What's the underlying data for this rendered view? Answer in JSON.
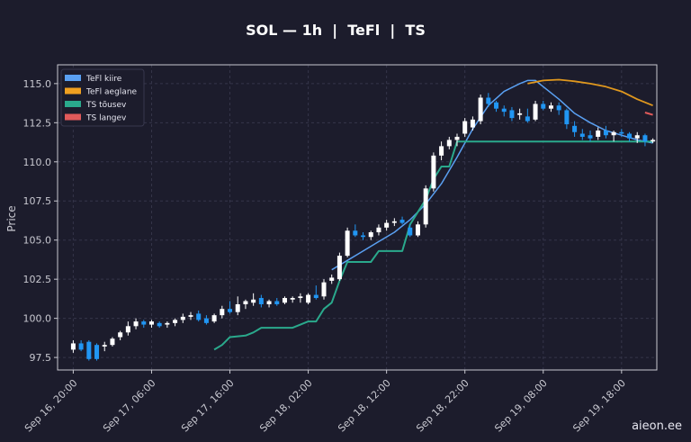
{
  "chart_data": {
    "type": "candlestick",
    "title": "SOL — 1h  |  TeFl  |  TS",
    "ylabel": "Price",
    "ylim": [
      96.7,
      116.2
    ],
    "xlim": [
      -4,
      149
    ],
    "yticks": [
      "97.5",
      "100.0",
      "102.5",
      "105.0",
      "107.5",
      "110.0",
      "112.5",
      "115.0"
    ],
    "yticks_values": [
      97.5,
      100.0,
      102.5,
      105.0,
      107.5,
      110.0,
      112.5,
      115.0
    ],
    "xticks": [
      "Sep 16, 20:00",
      "Sep 17, 06:00",
      "Sep 17, 16:00",
      "Sep 18, 02:00",
      "Sep 18, 12:00",
      "Sep 18, 22:00",
      "Sep 19, 08:00",
      "Sep 19, 18:00"
    ],
    "xticks_index": [
      0,
      20,
      40,
      60,
      80,
      100,
      120,
      140
    ],
    "grid": true,
    "legend_position": "top-left",
    "legend": [
      {
        "label": "TeFl kiire",
        "color": "#5aa0f2"
      },
      {
        "label": "TeFl aeglane",
        "color": "#f0a020"
      },
      {
        "label": "TS tõusev",
        "color": "#2aa98c"
      },
      {
        "label": "TS langev",
        "color": "#e05a5a"
      }
    ],
    "colors": {
      "up": "#ffffff",
      "down": "#2196f3",
      "fast": "#5aa0f2",
      "slow": "#e0981e",
      "ts_up": "#2aa98c",
      "ts_down": "#e05a5a",
      "grid": "#35354a",
      "bg": "#1c1c2c"
    },
    "candles": [
      [
        0,
        98.0,
        98.6,
        97.8,
        98.4
      ],
      [
        2,
        98.4,
        98.6,
        97.9,
        98.0
      ],
      [
        4,
        98.5,
        98.6,
        97.3,
        97.4
      ],
      [
        6,
        98.3,
        98.4,
        97.3,
        97.4
      ],
      [
        8,
        98.2,
        98.5,
        97.9,
        98.3
      ],
      [
        10,
        98.3,
        98.8,
        98.2,
        98.7
      ],
      [
        12,
        98.8,
        99.2,
        98.6,
        99.1
      ],
      [
        14,
        99.1,
        99.8,
        98.9,
        99.5
      ],
      [
        16,
        99.5,
        100.0,
        99.3,
        99.8
      ],
      [
        18,
        99.8,
        99.9,
        99.4,
        99.6
      ],
      [
        20,
        99.6,
        99.9,
        99.4,
        99.8
      ],
      [
        22,
        99.7,
        99.8,
        99.4,
        99.5
      ],
      [
        24,
        99.6,
        99.8,
        99.4,
        99.7
      ],
      [
        26,
        99.7,
        100.0,
        99.5,
        99.9
      ],
      [
        28,
        99.9,
        100.3,
        99.7,
        100.1
      ],
      [
        30,
        100.1,
        100.4,
        99.9,
        100.2
      ],
      [
        32,
        100.3,
        100.5,
        99.8,
        99.9
      ],
      [
        34,
        100.0,
        100.2,
        99.6,
        99.7
      ],
      [
        36,
        99.8,
        100.3,
        99.7,
        100.2
      ],
      [
        38,
        100.2,
        100.8,
        100.0,
        100.6
      ],
      [
        40,
        100.6,
        101.1,
        100.3,
        100.4
      ],
      [
        42,
        100.4,
        101.4,
        100.2,
        100.9
      ],
      [
        44,
        100.9,
        101.2,
        100.6,
        101.1
      ],
      [
        46,
        101.0,
        101.6,
        100.8,
        101.2
      ],
      [
        48,
        101.3,
        101.5,
        100.7,
        100.9
      ],
      [
        50,
        100.9,
        101.2,
        100.7,
        101.1
      ],
      [
        52,
        101.1,
        101.3,
        100.8,
        100.9
      ],
      [
        54,
        101.0,
        101.4,
        100.9,
        101.3
      ],
      [
        56,
        101.2,
        101.4,
        101.0,
        101.3
      ],
      [
        58,
        101.3,
        101.6,
        101.0,
        101.4
      ],
      [
        60,
        101.0,
        101.6,
        100.9,
        101.5
      ],
      [
        62,
        101.5,
        102.1,
        101.2,
        101.3
      ],
      [
        64,
        101.4,
        102.5,
        101.2,
        102.3
      ],
      [
        66,
        102.4,
        102.8,
        102.2,
        102.6
      ],
      [
        68,
        102.5,
        104.2,
        102.4,
        104.0
      ],
      [
        70,
        104.0,
        105.8,
        103.9,
        105.6
      ],
      [
        72,
        105.6,
        106.0,
        105.2,
        105.3
      ],
      [
        74,
        105.3,
        105.5,
        105.0,
        105.2
      ],
      [
        76,
        105.2,
        105.6,
        105.0,
        105.5
      ],
      [
        78,
        105.5,
        106.0,
        105.3,
        105.8
      ],
      [
        80,
        105.8,
        106.3,
        105.6,
        106.1
      ],
      [
        82,
        106.1,
        106.4,
        105.9,
        106.2
      ],
      [
        84,
        106.3,
        106.5,
        106.0,
        106.1
      ],
      [
        86,
        105.8,
        106.0,
        105.2,
        105.3
      ],
      [
        88,
        105.3,
        106.2,
        105.2,
        106.0
      ],
      [
        90,
        106.0,
        108.5,
        105.8,
        108.3
      ],
      [
        92,
        108.3,
        110.6,
        108.1,
        110.4
      ],
      [
        94,
        110.4,
        111.3,
        110.1,
        111.0
      ],
      [
        96,
        111.0,
        111.6,
        110.8,
        111.4
      ],
      [
        98,
        111.4,
        111.8,
        111.0,
        111.6
      ],
      [
        100,
        111.8,
        112.8,
        111.6,
        112.6
      ],
      [
        102,
        112.2,
        112.9,
        112.0,
        112.7
      ],
      [
        104,
        112.6,
        114.3,
        112.4,
        114.1
      ],
      [
        106,
        114.1,
        114.4,
        113.5,
        113.7
      ],
      [
        108,
        113.8,
        113.9,
        113.2,
        113.4
      ],
      [
        110,
        113.4,
        113.6,
        112.9,
        113.2
      ],
      [
        112,
        113.3,
        113.5,
        112.6,
        112.8
      ],
      [
        114,
        113.0,
        113.4,
        112.7,
        113.1
      ],
      [
        116,
        112.9,
        113.4,
        112.5,
        112.6
      ],
      [
        118,
        112.7,
        113.9,
        112.6,
        113.7
      ],
      [
        120,
        113.7,
        113.9,
        113.3,
        113.4
      ],
      [
        122,
        113.4,
        113.8,
        113.2,
        113.6
      ],
      [
        124,
        113.6,
        113.8,
        113.0,
        113.3
      ],
      [
        126,
        113.3,
        113.4,
        112.1,
        112.4
      ],
      [
        128,
        112.3,
        112.6,
        111.6,
        111.9
      ],
      [
        130,
        111.8,
        112.1,
        111.4,
        111.6
      ],
      [
        132,
        111.7,
        112.0,
        111.3,
        111.5
      ],
      [
        134,
        111.6,
        112.2,
        111.4,
        112.0
      ],
      [
        136,
        112.0,
        112.3,
        111.5,
        111.7
      ],
      [
        138,
        111.7,
        112.0,
        111.3,
        111.9
      ],
      [
        140,
        111.9,
        112.1,
        111.6,
        111.8
      ],
      [
        142,
        111.8,
        111.9,
        111.3,
        111.5
      ],
      [
        144,
        111.5,
        111.9,
        111.2,
        111.7
      ],
      [
        146,
        111.7,
        111.8,
        111.0,
        111.3
      ],
      [
        148,
        111.3,
        111.5,
        111.2,
        111.4
      ]
    ],
    "series": [
      {
        "name": "TeFl kiire",
        "points": [
          [
            66,
            103.1
          ],
          [
            70,
            103.7
          ],
          [
            74,
            104.3
          ],
          [
            78,
            104.9
          ],
          [
            82,
            105.5
          ],
          [
            86,
            106.3
          ],
          [
            90,
            107.3
          ],
          [
            94,
            108.6
          ],
          [
            98,
            110.3
          ],
          [
            102,
            112.1
          ],
          [
            106,
            113.6
          ],
          [
            110,
            114.5
          ],
          [
            114,
            115.0
          ],
          [
            116,
            115.2
          ],
          [
            118,
            115.2
          ],
          [
            120,
            114.8
          ],
          [
            124,
            114.0
          ],
          [
            128,
            113.1
          ],
          [
            132,
            112.5
          ],
          [
            136,
            112.0
          ],
          [
            140,
            111.7
          ],
          [
            144,
            111.4
          ],
          [
            148,
            111.2
          ]
        ]
      },
      {
        "name": "TeFl aeglane",
        "points": [
          [
            116,
            115.0
          ],
          [
            120,
            115.2
          ],
          [
            124,
            115.25
          ],
          [
            128,
            115.15
          ],
          [
            132,
            115.0
          ],
          [
            136,
            114.8
          ],
          [
            140,
            114.5
          ],
          [
            144,
            114.0
          ],
          [
            148,
            113.6
          ]
        ]
      },
      {
        "name": "TS tõusev",
        "points": [
          [
            36,
            98.0
          ],
          [
            38,
            98.3
          ],
          [
            40,
            98.8
          ],
          [
            44,
            98.9
          ],
          [
            46,
            99.1
          ],
          [
            48,
            99.4
          ],
          [
            56,
            99.4
          ],
          [
            58,
            99.6
          ],
          [
            60,
            99.8
          ],
          [
            62,
            99.8
          ],
          [
            64,
            100.6
          ],
          [
            66,
            101.0
          ],
          [
            68,
            102.4
          ],
          [
            70,
            103.6
          ],
          [
            74,
            103.6
          ],
          [
            76,
            103.6
          ],
          [
            78,
            104.3
          ],
          [
            84,
            104.3
          ],
          [
            86,
            106.0
          ],
          [
            88,
            106.8
          ],
          [
            90,
            107.6
          ],
          [
            92,
            108.9
          ],
          [
            94,
            109.7
          ],
          [
            96,
            109.7
          ],
          [
            98,
            111.3
          ],
          [
            148,
            111.3
          ]
        ]
      },
      {
        "name": "TS langev",
        "points": [
          [
            146,
            113.15
          ],
          [
            148,
            113.0
          ]
        ]
      }
    ]
  },
  "watermark": "aieon.ee"
}
